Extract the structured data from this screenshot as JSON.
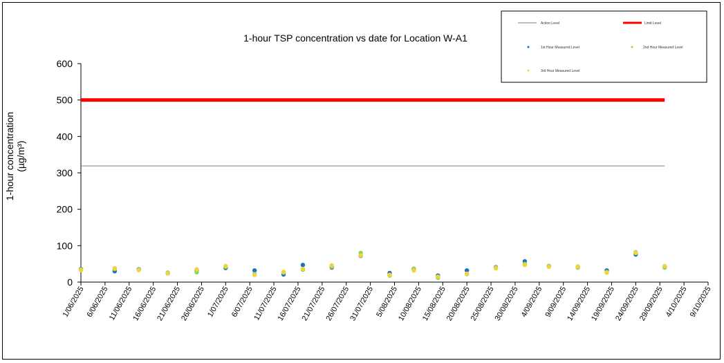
{
  "chart_data": {
    "type": "scatter",
    "title": "1-hour TSP concentration vs date for Location W-A1",
    "ylabel_line1": "1-hour concentration",
    "ylabel_line2": "(µg/m³)",
    "xlabel": "",
    "ylim": [
      0,
      600
    ],
    "yticks": [
      "0",
      "100",
      "200",
      "300",
      "400",
      "500",
      "600"
    ],
    "xlim": [
      "2025-06-01",
      "2025-10-09"
    ],
    "xticks": [
      "1/06/2025",
      "6/06/2025",
      "11/06/2025",
      "16/06/2025",
      "21/06/2025",
      "26/06/2025",
      "1/07/2025",
      "6/07/2025",
      "11/07/2025",
      "16/07/2025",
      "21/07/2025",
      "26/07/2025",
      "31/07/2025",
      "5/08/2025",
      "10/08/2025",
      "15/08/2025",
      "20/08/2025",
      "25/08/2025",
      "30/08/2025",
      "4/09/2025",
      "9/09/2025",
      "14/09/2025",
      "19/09/2025",
      "24/09/2025",
      "29/09/2025",
      "4/10/2025",
      "9/10/2025"
    ],
    "grid": false,
    "legend_position": "top-right",
    "action_level": {
      "name": "Action Level",
      "value": 319,
      "color": "#7f7f7f",
      "x": [
        "2025-06-01",
        "2025-09-30"
      ]
    },
    "limit_level": {
      "name": "Limit Level",
      "value": 500,
      "color": "#ff0000",
      "x": [
        "2025-06-01",
        "2025-09-30"
      ]
    },
    "dates": [
      "2025-06-01",
      "2025-06-08",
      "2025-06-13",
      "2025-06-19",
      "2025-06-25",
      "2025-07-01",
      "2025-07-07",
      "2025-07-13",
      "2025-07-17",
      "2025-07-23",
      "2025-07-29",
      "2025-08-04",
      "2025-08-09",
      "2025-08-14",
      "2025-08-20",
      "2025-08-26",
      "2025-09-01",
      "2025-09-06",
      "2025-09-12",
      "2025-09-18",
      "2025-09-24",
      "2025-09-30"
    ],
    "series": [
      {
        "name": "1st Hour Measured Level",
        "color": "#1f6fc0",
        "values": [
          36,
          30,
          35,
          24,
          33,
          39,
          32,
          21,
          47,
          40,
          72,
          25,
          35,
          18,
          32,
          41,
          57,
          44,
          42,
          32,
          76,
          42
        ]
      },
      {
        "name": "2nd Hour Measured Level",
        "color": "#8dd35f",
        "values": [
          35,
          36,
          34,
          26,
          27,
          42,
          22,
          26,
          34,
          42,
          80,
          18,
          37,
          12,
          22,
          40,
          50,
          44,
          40,
          28,
          82,
          40
        ]
      },
      {
        "name": "3rd Hour Measured Level",
        "color": "#f2d33a",
        "values": [
          33,
          38,
          33,
          24,
          35,
          44,
          20,
          28,
          36,
          46,
          73,
          20,
          32,
          15,
          23,
          38,
          47,
          42,
          43,
          26,
          80,
          44
        ]
      }
    ]
  }
}
